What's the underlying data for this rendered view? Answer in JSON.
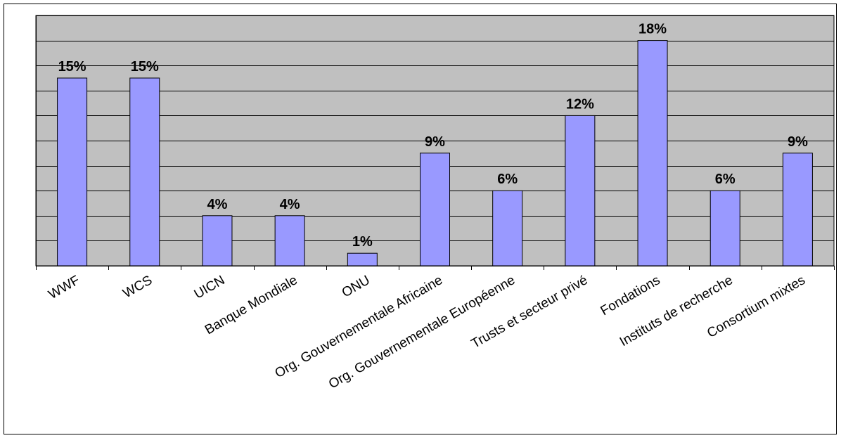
{
  "chart_data": {
    "type": "bar",
    "categories": [
      "WWF",
      "WCS",
      "UICN",
      "Banque Mondiale",
      "ONU",
      "Org. Gouvernementale Africaine",
      "Org. Gouvernementale Européenne",
      "Trusts et secteur privé",
      "Fondations",
      "Instituts de recherche",
      "Consortium mixtes"
    ],
    "values": [
      15,
      15,
      4,
      4,
      1,
      9,
      6,
      12,
      18,
      6,
      9
    ],
    "data_labels": [
      "15%",
      "15%",
      "4%",
      "4%",
      "1%",
      "9%",
      "6%",
      "12%",
      "18%",
      "6%",
      "9%"
    ],
    "title": "",
    "xlabel": "",
    "ylabel": "",
    "ylim": [
      0,
      20
    ],
    "grid": true,
    "legend": "none",
    "colors": {
      "bar_fill": "#9999ff",
      "bar_stroke": "#000000",
      "plot_background": "#c0c0c0",
      "gridline": "#000000"
    }
  }
}
